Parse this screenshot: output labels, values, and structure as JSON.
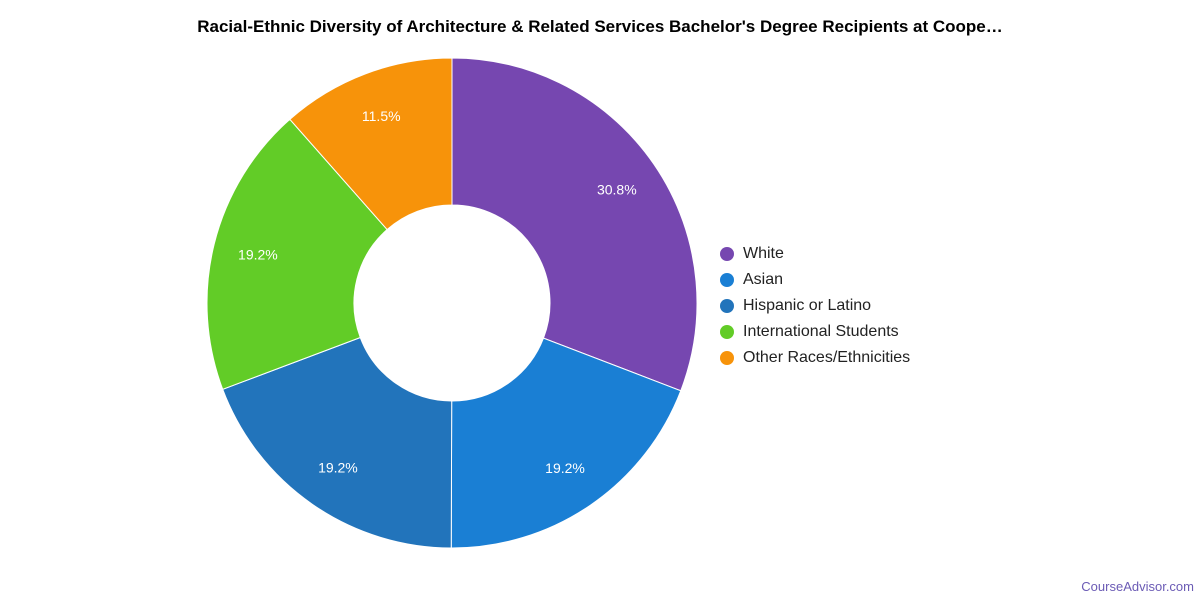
{
  "chart_data": {
    "type": "pie",
    "donut": true,
    "title": "Racial-Ethnic Diversity of Architecture & Related Services Bachelor's Degree Recipients at Coope…",
    "slices": [
      {
        "name": "White",
        "value": 30.8,
        "label": "30.8%",
        "color": "#7647b0"
      },
      {
        "name": "Asian",
        "value": 19.2,
        "label": "19.2%",
        "color": "#1a7fd4"
      },
      {
        "name": "Hispanic or Latino",
        "value": 19.2,
        "label": "19.2%",
        "color": "#2274bb"
      },
      {
        "name": "International Students",
        "value": 19.2,
        "label": "19.2%",
        "color": "#62cc27"
      },
      {
        "name": "Other Races/Ethnicities",
        "value": 11.5,
        "label": "11.5%",
        "color": "#f7930a"
      }
    ],
    "legend_position": "right"
  },
  "watermark": "CourseAdvisor.com"
}
